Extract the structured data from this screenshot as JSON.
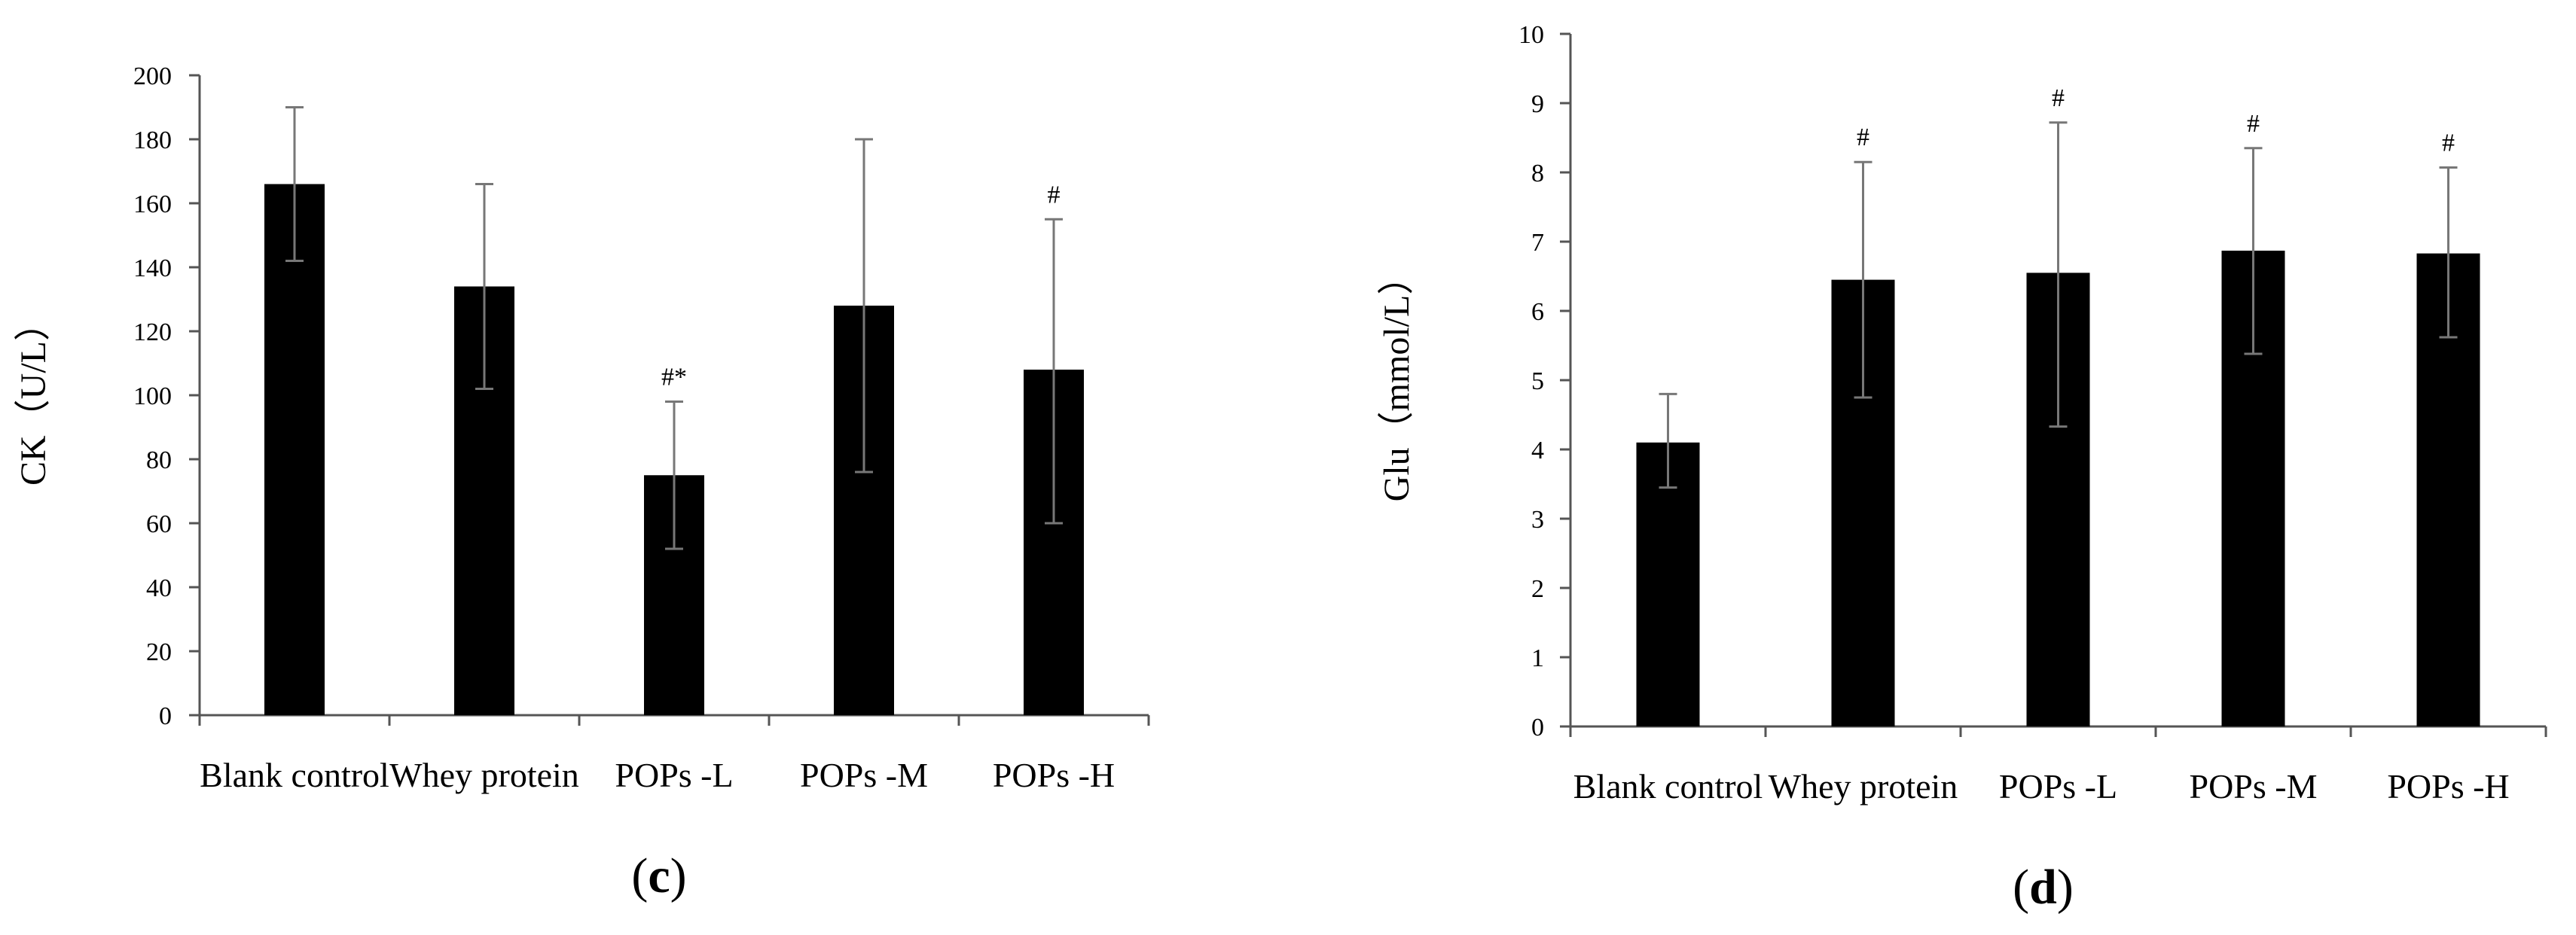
{
  "panels": [
    {
      "panel_label": "c",
      "chart_data": {
        "type": "bar",
        "title": "",
        "xlabel": "",
        "ylabel": "CK（U/L）",
        "ylim": [
          0,
          200
        ],
        "yticks": [
          0,
          20,
          40,
          60,
          80,
          100,
          120,
          140,
          160,
          180,
          200
        ],
        "categories": [
          "Blank control",
          "Whey protein",
          "POPs -L",
          "POPs -M",
          "POPs -H"
        ],
        "values": [
          166,
          134,
          75,
          128,
          108
        ],
        "error_upper": [
          190,
          166,
          98,
          180,
          155
        ],
        "error_lower": [
          142,
          102,
          52,
          76,
          60
        ],
        "annotations": [
          "",
          "",
          "#*",
          "",
          "#"
        ],
        "bar_color": "#000000",
        "grid": false,
        "legend": "none"
      }
    },
    {
      "panel_label": "d",
      "chart_data": {
        "type": "bar",
        "title": "",
        "xlabel": "",
        "ylabel": "Glu（mmol/L）",
        "ylim": [
          0,
          10
        ],
        "yticks": [
          0,
          1,
          2,
          3,
          4,
          5,
          6,
          7,
          8,
          9,
          10
        ],
        "categories": [
          "Blank control",
          "Whey protein",
          "POPs -L",
          "POPs -M",
          "POPs -H"
        ],
        "values": [
          4.1,
          6.45,
          6.55,
          6.87,
          6.83
        ],
        "error_upper": [
          4.8,
          8.15,
          8.72,
          8.35,
          8.07
        ],
        "error_lower": [
          3.45,
          4.75,
          4.33,
          5.38,
          5.62
        ],
        "annotations": [
          "",
          "#",
          "#",
          "#",
          "#"
        ],
        "bar_color": "#000000",
        "grid": false,
        "legend": "none"
      }
    }
  ]
}
